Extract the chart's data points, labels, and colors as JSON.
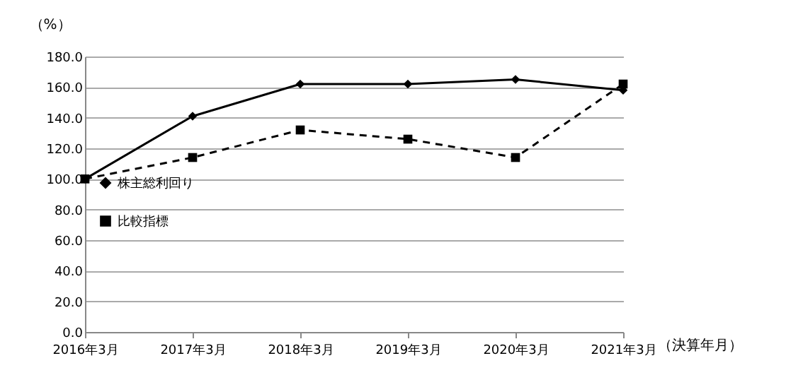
{
  "chart_data": {
    "type": "line",
    "ylabel": "（%）",
    "xlabel": "（決算年月）",
    "categories": [
      "2016年3月",
      "2017年3月",
      "2018年3月",
      "2019年3月",
      "2020年3月",
      "2021年3月"
    ],
    "series": [
      {
        "name": "株主総利回り",
        "color": "#000000",
        "marker": "diamond",
        "line_style": "solid",
        "values": [
          100,
          141,
          162,
          162,
          165,
          158
        ]
      },
      {
        "name": "比較指標",
        "color": "#000000",
        "marker": "square",
        "line_style": "dashed",
        "values": [
          100,
          114,
          132,
          126,
          114,
          162
        ]
      }
    ],
    "ylim": [
      0,
      180
    ],
    "yticks": [
      {
        "value": 0,
        "label": "0.0"
      },
      {
        "value": 20,
        "label": "20.0"
      },
      {
        "value": 40,
        "label": "40.0"
      },
      {
        "value": 60,
        "label": "60.0"
      },
      {
        "value": 80,
        "label": "80.0"
      },
      {
        "value": 100,
        "label": "100.0"
      },
      {
        "value": 120,
        "label": "120.0"
      },
      {
        "value": 140,
        "label": "140.0"
      },
      {
        "value": 160,
        "label": "160.0"
      },
      {
        "value": 180,
        "label": "180.0"
      }
    ],
    "grid": "y",
    "legend": "left"
  }
}
